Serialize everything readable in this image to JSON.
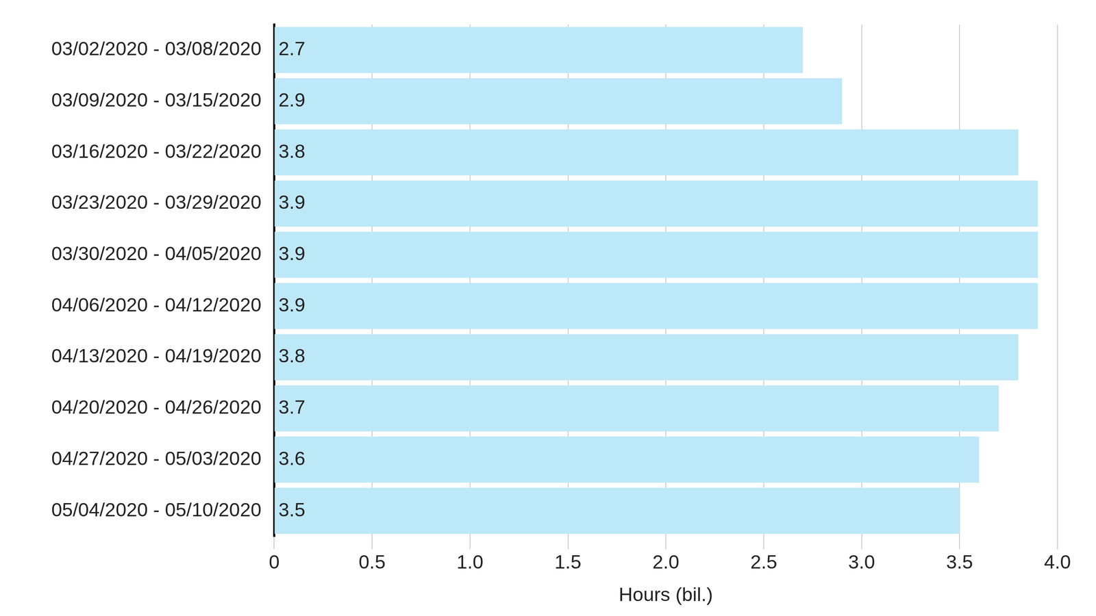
{
  "chart_data": {
    "type": "bar",
    "orientation": "horizontal",
    "categories": [
      "03/02/2020 - 03/08/2020",
      "03/09/2020 - 03/15/2020",
      "03/16/2020 - 03/22/2020",
      "03/23/2020 - 03/29/2020",
      "03/30/2020 - 04/05/2020",
      "04/06/2020 - 04/12/2020",
      "04/13/2020 - 04/19/2020",
      "04/20/2020 - 04/26/2020",
      "04/27/2020 - 05/03/2020",
      "05/04/2020 - 05/10/2020"
    ],
    "values": [
      2.7,
      2.9,
      3.8,
      3.9,
      3.9,
      3.9,
      3.8,
      3.7,
      3.6,
      3.5
    ],
    "color": "#bde8f7",
    "xlabel": "Hours (bil.)",
    "xlim": [
      0,
      4
    ],
    "xticks": [
      0,
      0.5,
      {
        "value": 1,
        "label": "1.0"
      },
      1.5,
      {
        "value": 2,
        "label": "2.0"
      },
      2.5,
      {
        "value": 3,
        "label": "3.0"
      },
      3.5,
      {
        "value": 4,
        "label": "4.0"
      }
    ],
    "grid": true,
    "data_labels": true
  }
}
